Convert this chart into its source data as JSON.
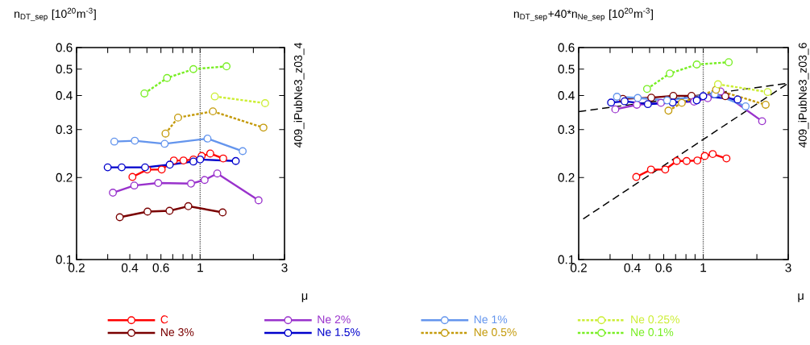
{
  "chart_data": [
    {
      "type": "line",
      "ylabel": "n$_{DT_sep}$ [10$^{20}$m$^{-3}$]",
      "xlabel": "μ",
      "log": "xy",
      "marker": "circle",
      "legend": "bottom",
      "xlim": [
        0.2,
        3
      ],
      "ylim": [
        0.1,
        0.6
      ],
      "xticks": [
        0.2,
        {
          "value": 0.3,
          "label": null
        },
        0.4,
        {
          "value": 0.5,
          "label": null
        },
        0.6,
        {
          "value": 0.7,
          "label": null
        },
        {
          "value": 0.8,
          "label": null
        },
        {
          "value": 0.9,
          "label": null
        },
        1,
        {
          "value": 2,
          "label": null
        },
        3
      ],
      "yticks": [
        0.1,
        0.2,
        0.3,
        0.4,
        0.5,
        0.6
      ],
      "ref_lines": [
        {
          "axis": "x",
          "value": 1,
          "color": "#555555",
          "line_style": "dotted"
        }
      ],
      "annotations": [
        "409_iPubNe3_z03_4"
      ],
      "series": [
        {
          "name": "C",
          "color": "#ff0000",
          "line_style": "solid",
          "x": [
            0.414,
            0.502,
            0.606,
            0.71,
            0.805,
            0.916,
            1.02,
            1.14,
            1.35
          ],
          "values": [
            0.201,
            0.214,
            0.214,
            0.231,
            0.231,
            0.233,
            0.24,
            0.245,
            0.235
          ]
        },
        {
          "name": "Ne 3%",
          "color": "#7a0000",
          "line_style": "solid",
          "x": [
            0.351,
            0.504,
            0.671,
            0.857,
            1.34
          ],
          "values": [
            0.143,
            0.15,
            0.151,
            0.157,
            0.149
          ]
        },
        {
          "name": "Ne 2%",
          "color": "#9932cc",
          "line_style": "solid",
          "x": [
            0.321,
            0.424,
            0.579,
            0.888,
            1.06,
            1.25,
            2.14
          ],
          "values": [
            0.176,
            0.187,
            0.191,
            0.19,
            0.196,
            0.207,
            0.165
          ]
        },
        {
          "name": "Ne 1.5%",
          "color": "#0000cc",
          "line_style": "solid",
          "x": [
            0.3,
            0.36,
            0.488,
            0.673,
            0.916,
            1.0,
            1.59
          ],
          "values": [
            0.218,
            0.218,
            0.218,
            0.223,
            0.229,
            0.233,
            0.23
          ]
        },
        {
          "name": "Ne 1%",
          "color": "#6495ed",
          "line_style": "solid",
          "x": [
            0.327,
            0.427,
            0.63,
            1.1,
            1.74
          ],
          "values": [
            0.271,
            0.273,
            0.266,
            0.278,
            0.25
          ]
        },
        {
          "name": "Ne 0.5%",
          "color": "#c49a0a",
          "line_style": "dotted",
          "x": [
            0.637,
            0.75,
            1.18,
            2.28
          ],
          "values": [
            0.29,
            0.332,
            0.35,
            0.305
          ]
        },
        {
          "name": "Ne 0.25%",
          "color": "#ccee33",
          "line_style": "dotted",
          "x": [
            1.21,
            2.33
          ],
          "values": [
            0.397,
            0.375
          ]
        },
        {
          "name": "Ne 0.1%",
          "color": "#77ee22",
          "line_style": "dotted",
          "x": [
            0.484,
            0.65,
            0.916,
            1.41
          ],
          "values": [
            0.407,
            0.464,
            0.5,
            0.512
          ]
        }
      ]
    },
    {
      "type": "line",
      "ylabel": "n$_{DT_sep}$+40*n$_{Ne_sep}$ [10$^{20}$m$^{-3}$]",
      "xlabel": "μ",
      "log": "xy",
      "marker": "circle",
      "xlim": [
        0.2,
        3
      ],
      "ylim": [
        0.1,
        0.6
      ],
      "xticks": [
        0.2,
        {
          "value": 0.3,
          "label": null
        },
        0.4,
        {
          "value": 0.5,
          "label": null
        },
        0.6,
        {
          "value": 0.7,
          "label": null
        },
        {
          "value": 0.8,
          "label": null
        },
        {
          "value": 0.9,
          "label": null
        },
        1,
        {
          "value": 2,
          "label": null
        },
        3
      ],
      "yticks": [
        0.1,
        0.2,
        0.3,
        0.4,
        0.5,
        0.6
      ],
      "ref_lines": [
        {
          "axis": "x",
          "value": 1,
          "color": "#555555",
          "line_style": "dotted"
        }
      ],
      "annotations": [
        "409_iPubNe3_z03_6"
      ],
      "series": [
        {
          "type": "line",
          "marker": "none",
          "color": "#000000",
          "line_style": "dashed",
          "x": [
            0.2,
            3
          ],
          "values": [
            0.349,
            0.444
          ]
        },
        {
          "type": "line",
          "marker": "none",
          "color": "#000000",
          "line_style": "dashed",
          "x": [
            0.212,
            3
          ],
          "values": [
            0.141,
            0.444
          ]
        },
        {
          "color": "#ff0000",
          "line_style": "solid",
          "x": [
            0.421,
            0.509,
            0.612,
            0.71,
            0.807,
            0.927,
            1.02,
            1.13,
            1.35
          ],
          "values": [
            0.201,
            0.214,
            0.214,
            0.23,
            0.23,
            0.231,
            0.24,
            0.244,
            0.235
          ]
        },
        {
          "color": "#7a0000",
          "line_style": "solid",
          "x": [
            0.354,
            0.511,
            0.679,
            0.859,
            1.33
          ],
          "values": [
            0.389,
            0.393,
            0.399,
            0.399,
            0.398
          ]
        },
        {
          "color": "#9932cc",
          "line_style": "solid",
          "x": [
            0.321,
            0.424,
            0.579,
            0.888,
            1.06,
            1.25,
            2.14
          ],
          "values": [
            0.356,
            0.37,
            0.376,
            0.38,
            0.391,
            0.414,
            0.322
          ]
        },
        {
          "color": "#0000cc",
          "line_style": "solid",
          "x": [
            0.304,
            0.362,
            0.489,
            0.674,
            0.92,
            1.0,
            1.56
          ],
          "values": [
            0.377,
            0.381,
            0.372,
            0.377,
            0.384,
            0.398,
            0.387
          ]
        },
        {
          "color": "#6495ed",
          "line_style": "solid",
          "x": [
            0.328,
            0.429,
            0.627,
            1.16,
            1.73
          ],
          "values": [
            0.396,
            0.392,
            0.384,
            0.405,
            0.365
          ]
        },
        {
          "color": "#c49a0a",
          "line_style": "dotted",
          "x": [
            0.638,
            0.758,
            1.18,
            2.24
          ],
          "values": [
            0.352,
            0.376,
            0.42,
            0.37
          ]
        },
        {
          "color": "#ccee33",
          "line_style": "dotted",
          "x": [
            1.21,
            2.3
          ],
          "values": [
            0.44,
            0.412
          ]
        },
        {
          "color": "#77ee22",
          "line_style": "dotted",
          "x": [
            0.484,
            0.649,
            0.92,
            1.39
          ],
          "values": [
            0.423,
            0.482,
            0.52,
            0.53
          ]
        }
      ]
    }
  ]
}
